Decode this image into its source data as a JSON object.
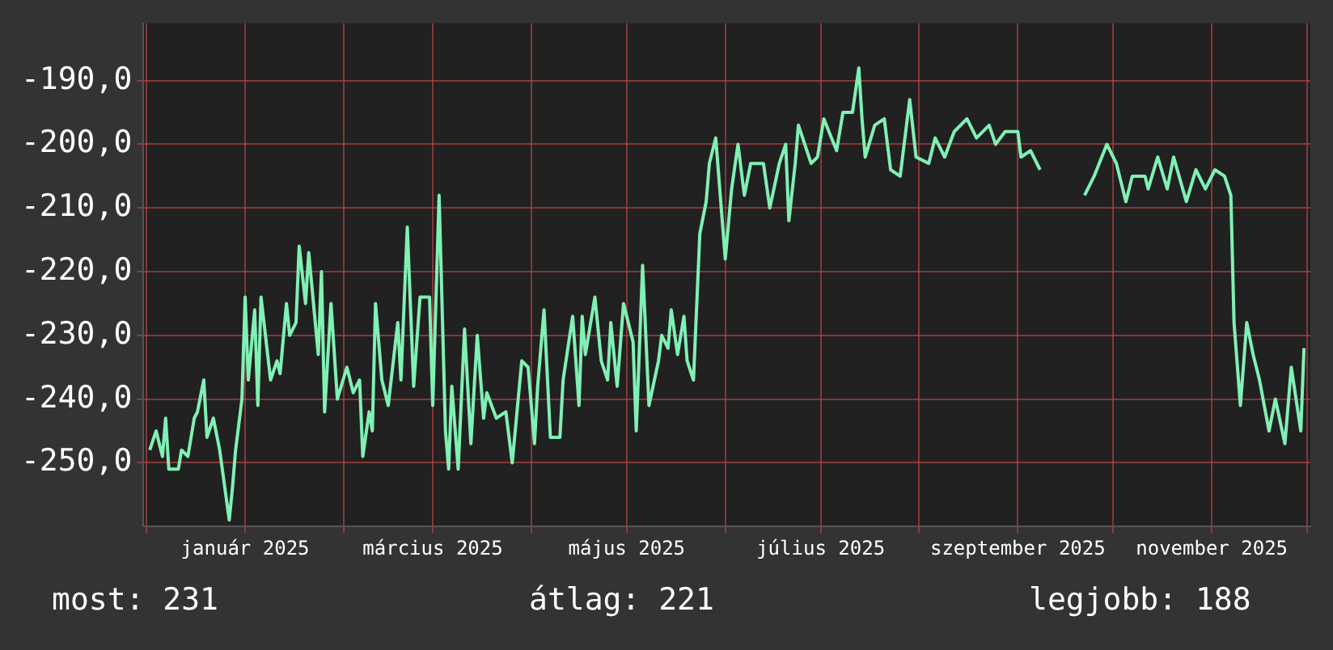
{
  "chart_data": {
    "type": "line",
    "x": [
      "2024-12-02",
      "2024-12-04",
      "2024-12-06",
      "2024-12-07",
      "2024-12-08",
      "2024-12-11",
      "2024-12-12",
      "2024-12-14",
      "2024-12-16",
      "2024-12-17",
      "2024-12-19",
      "2024-12-20",
      "2024-12-22",
      "2024-12-24",
      "2024-12-27",
      "2024-12-28",
      "2024-12-29",
      "2024-12-31",
      "2025-01-01",
      "2025-01-02",
      "2025-01-04",
      "2025-01-05",
      "2025-01-06",
      "2025-01-09",
      "2025-01-11",
      "2025-01-12",
      "2025-01-14",
      "2025-01-15",
      "2025-01-17",
      "2025-01-18",
      "2025-01-20",
      "2025-01-21",
      "2025-01-24",
      "2025-01-25",
      "2025-01-26",
      "2025-01-28",
      "2025-01-30",
      "2025-02-02",
      "2025-02-04",
      "2025-02-06",
      "2025-02-07",
      "2025-02-09",
      "2025-02-10",
      "2025-02-11",
      "2025-02-13",
      "2025-02-15",
      "2025-02-18",
      "2025-02-19",
      "2025-02-21",
      "2025-02-23",
      "2025-02-25",
      "2025-02-28",
      "2025-03-01",
      "2025-03-03",
      "2025-03-05",
      "2025-03-06",
      "2025-03-07",
      "2025-03-09",
      "2025-03-11",
      "2025-03-13",
      "2025-03-15",
      "2025-03-17",
      "2025-03-18",
      "2025-03-21",
      "2025-03-24",
      "2025-03-26",
      "2025-03-29",
      "2025-03-31",
      "2025-04-02",
      "2025-04-03",
      "2025-04-05",
      "2025-04-07",
      "2025-04-10",
      "2025-04-11",
      "2025-04-14",
      "2025-04-16",
      "2025-04-17",
      "2025-04-18",
      "2025-04-21",
      "2025-04-23",
      "2025-04-25",
      "2025-04-26",
      "2025-04-28",
      "2025-04-30",
      "2025-05-03",
      "2025-05-04",
      "2025-05-06",
      "2025-05-08",
      "2025-05-11",
      "2025-05-12",
      "2025-05-14",
      "2025-05-15",
      "2025-05-17",
      "2025-05-19",
      "2025-05-20",
      "2025-05-22",
      "2025-05-24",
      "2025-05-26",
      "2025-05-27",
      "2025-05-29",
      "2025-06-01",
      "2025-06-03",
      "2025-06-05",
      "2025-06-07",
      "2025-06-09",
      "2025-06-13",
      "2025-06-15",
      "2025-06-18",
      "2025-06-20",
      "2025-06-21",
      "2025-06-23",
      "2025-06-24",
      "2025-06-28",
      "2025-06-30",
      "2025-07-02",
      "2025-07-06",
      "2025-07-08",
      "2025-07-11",
      "2025-07-13",
      "2025-07-14",
      "2025-07-15",
      "2025-07-18",
      "2025-07-21",
      "2025-07-23",
      "2025-07-26",
      "2025-07-29",
      "2025-07-31",
      "2025-08-04",
      "2025-08-06",
      "2025-08-09",
      "2025-08-12",
      "2025-08-16",
      "2025-08-19",
      "2025-08-23",
      "2025-08-25",
      "2025-08-28",
      "2025-09-01",
      "2025-09-02",
      "2025-09-05",
      "2025-09-08",
      "2025-09-15",
      "2025-09-22",
      "2025-09-25",
      "2025-09-29",
      "2025-10-02",
      "2025-10-05",
      "2025-10-07",
      "2025-10-11",
      "2025-10-12",
      "2025-10-15",
      "2025-10-18",
      "2025-10-20",
      "2025-10-24",
      "2025-10-27",
      "2025-10-30",
      "2025-11-02",
      "2025-11-05",
      "2025-11-07",
      "2025-11-08",
      "2025-11-10",
      "2025-11-12",
      "2025-11-14",
      "2025-11-16",
      "2025-11-19",
      "2025-11-21",
      "2025-11-24",
      "2025-11-26",
      "2025-11-29",
      "2025-11-30"
    ],
    "series": [
      {
        "color": "#80f0b4",
        "values": [
          -248,
          -245,
          -249,
          -243,
          -251,
          -251,
          -248,
          -249,
          -243,
          -242,
          -237,
          -246,
          -243,
          -248,
          -259,
          -254,
          -248,
          -240,
          -224,
          -237,
          -226,
          -241,
          -224,
          -237,
          -234,
          -236,
          -225,
          -230,
          -228,
          -216,
          -225,
          -217,
          -233,
          -220,
          -242,
          -225,
          -240,
          -235,
          -239,
          -237,
          -249,
          -242,
          -245,
          -225,
          -237,
          -241,
          -228,
          -237,
          -213,
          -238,
          -224,
          -224,
          -241,
          -208,
          -245,
          -251,
          -238,
          -251,
          -229,
          -247,
          -230,
          -243,
          -239,
          -243,
          -242,
          -250,
          -234,
          -235,
          -247,
          -238,
          -226,
          -246,
          -246,
          -237,
          -227,
          -241,
          -227,
          -233,
          -224,
          -234,
          -237,
          -228,
          -238,
          -225,
          -231,
          -245,
          -219,
          -241,
          -234,
          -230,
          -232,
          -226,
          -233,
          -227,
          -234,
          -237,
          -214,
          -209,
          -203,
          -199,
          -218,
          -207,
          -200,
          -208,
          -203,
          -203,
          -210,
          -203,
          -200,
          -212,
          -203,
          -197,
          -203,
          -202,
          -196,
          -201,
          -195,
          -195,
          -188,
          -196,
          -202,
          -197,
          -196,
          -204,
          -205,
          -193,
          -202,
          -203,
          -199,
          -202,
          -198,
          -196,
          -199,
          -197,
          -200,
          -198,
          -198,
          -202,
          -201,
          -204,
          null,
          -208,
          -205,
          -200,
          -203,
          -209,
          -205,
          -205,
          -207,
          -202,
          -207,
          -202,
          -209,
          -204,
          -207,
          -204,
          -205,
          -208,
          -228,
          -241,
          -228,
          -233,
          -237,
          -245,
          -240,
          -247,
          -235,
          -245,
          -232
        ]
      }
    ],
    "xlim": [
      "2024-11-30",
      "2025-12-02"
    ],
    "xticks": [
      {
        "value": "2024-12-01",
        "label": null
      },
      {
        "value": "2025-01-01",
        "label": "január 2025"
      },
      {
        "value": "2025-02-01",
        "label": null
      },
      {
        "value": "2025-03-01",
        "label": "március 2025"
      },
      {
        "value": "2025-04-01",
        "label": null
      },
      {
        "value": "2025-05-01",
        "label": "május 2025"
      },
      {
        "value": "2025-06-01",
        "label": null
      },
      {
        "value": "2025-07-01",
        "label": "július 2025"
      },
      {
        "value": "2025-08-01",
        "label": null
      },
      {
        "value": "2025-09-01",
        "label": "szeptember 2025"
      },
      {
        "value": "2025-10-01",
        "label": null
      },
      {
        "value": "2025-11-01",
        "label": "november 2025"
      },
      {
        "value": "2025-12-01",
        "label": null
      }
    ],
    "ylim": [
      -260,
      -181
    ],
    "yticks": [
      {
        "value": -250,
        "label": "-250,0"
      },
      {
        "value": -240,
        "label": "-240,0"
      },
      {
        "value": -230,
        "label": "-230,0"
      },
      {
        "value": -220,
        "label": "-220,0"
      },
      {
        "value": -210,
        "label": "-210,0"
      },
      {
        "value": -200,
        "label": "-200,0"
      },
      {
        "value": -190,
        "label": "-190,0"
      }
    ],
    "grid": true,
    "legend": false,
    "marker": "none",
    "line_style": "solid",
    "annotations": [
      "most: 231",
      "átlag: 221",
      "legjobb: 188"
    ]
  }
}
